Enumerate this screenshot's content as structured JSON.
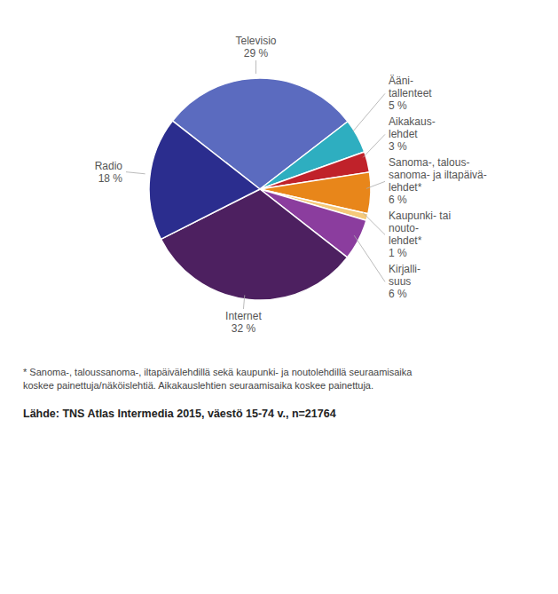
{
  "chart_data": {
    "type": "pie",
    "categories": [
      "Televisio",
      "Ääni-\ntallenteet",
      "Aikakaus-\nlehdet",
      "Sanoma-, talous-\nsanoma- ja iltapäivä-\nlehdet*",
      "Kaupunki- tai\nnоutо-\nlehdet*",
      "Kirjalli-\nsuus",
      "Internet",
      "Radio"
    ],
    "values": [
      29,
      5,
      3,
      6,
      1,
      6,
      32,
      18
    ],
    "value_labels": [
      "29 %",
      "5 %",
      "3 %",
      "6 %",
      "1 %",
      "6 %",
      "32 %",
      "18 %"
    ],
    "colors": [
      "#5b6bbf",
      "#2eaec0",
      "#c0222a",
      "#e8861a",
      "#f5c97a",
      "#8b3d9e",
      "#4d2060",
      "#2b2d8e"
    ],
    "data_labels": true,
    "annotations": [
      "* Sanoma-, taloussanoma-, iltapäivälehdillä sekä kaupunki- ja noutolehdillä seuraamisaika\nkoskee painettuja/näköislehtiä. Aikakauslehtien seuraamisaika koskee painettuja.",
      "Lähde: TNS Atlas Intermedia 2015, väestö 15-74 v., n=21764"
    ]
  }
}
